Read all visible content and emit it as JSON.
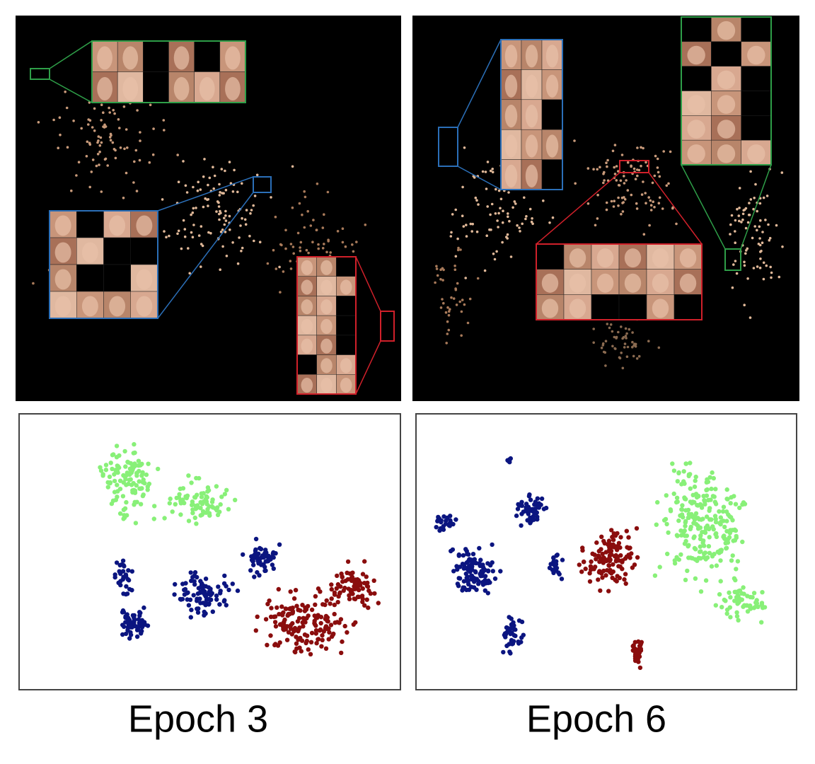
{
  "figure": {
    "captions": [
      "Epoch 3",
      "Epoch 6"
    ]
  }
}
